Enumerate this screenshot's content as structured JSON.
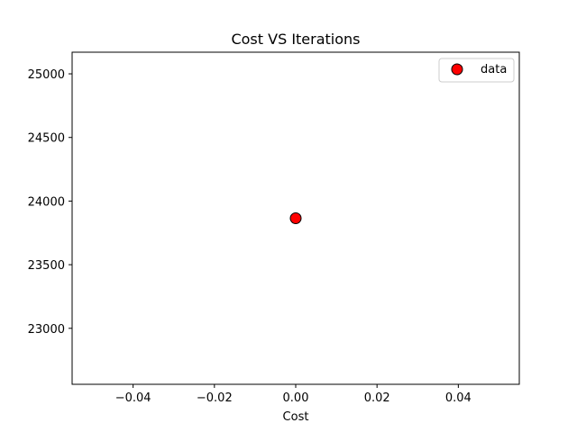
{
  "chart_data": {
    "type": "scatter",
    "title": "Cost VS Iterations",
    "xlabel": "Cost",
    "ylabel": "",
    "xlim": [
      -0.055,
      0.055
    ],
    "ylim": [
      22560,
      25170
    ],
    "xticks": [
      -0.04,
      -0.02,
      0.0,
      0.02,
      0.04
    ],
    "xtick_labels": [
      "−0.04",
      "−0.02",
      "0.00",
      "0.02",
      "0.04"
    ],
    "yticks": [
      23000,
      23500,
      24000,
      24500,
      25000
    ],
    "ytick_labels": [
      "23000",
      "23500",
      "24000",
      "24500",
      "25000"
    ],
    "series": [
      {
        "name": "data",
        "x": [
          0.0
        ],
        "y": [
          23865
        ],
        "color": "#ff0000",
        "edgecolor": "#000000"
      }
    ],
    "legend_position": "top-right",
    "grid": false
  }
}
